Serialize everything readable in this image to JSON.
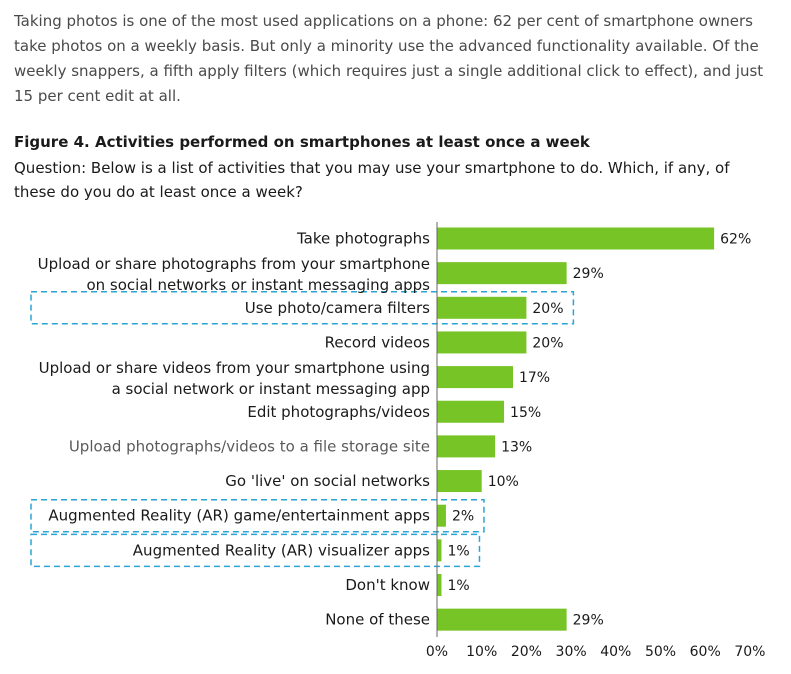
{
  "intro": "Taking photos is one of the most used applications on a phone: 62 per cent of smartphone owners take photos on a weekly basis. But only a minority use the advanced functionality available. Of the weekly snappers, a fifth apply filters (which requires just a single additional click to effect), and just 15 per cent edit at all.",
  "figure": {
    "title": "Figure 4. Activities performed on smartphones at least once a week",
    "question": "Question: Below is a list of activities that you may use your smartphone to do. Which, if any, of these do you do at least once a week?"
  },
  "colors": {
    "bar": "#76c425",
    "highlight_border": "#2aa5d6",
    "axis": "#666666"
  },
  "chart_data": {
    "type": "bar",
    "orientation": "horizontal",
    "categories": [
      [
        "Take photographs"
      ],
      [
        "Upload or share photographs from your smartphone",
        "on social networks or instant messaging apps"
      ],
      [
        "Use photo/camera filters"
      ],
      [
        "Record videos"
      ],
      [
        "Upload or share videos from your smartphone using",
        "a social network or instant messaging app"
      ],
      [
        "Edit photographs/videos"
      ],
      [
        "Upload photographs/videos to a file storage site"
      ],
      [
        "Go 'live' on social networks"
      ],
      [
        "Augmented Reality (AR) game/entertainment apps"
      ],
      [
        "Augmented Reality (AR) visualizer apps"
      ],
      [
        "Don't know"
      ],
      [
        "None of these"
      ]
    ],
    "values": [
      62,
      29,
      20,
      20,
      17,
      15,
      13,
      10,
      2,
      1,
      1,
      29
    ],
    "value_labels": [
      "62%",
      "29%",
      "20%",
      "20%",
      "17%",
      "15%",
      "13%",
      "10%",
      "2%",
      "1%",
      "1%",
      "29%"
    ],
    "highlighted": [
      false,
      false,
      true,
      false,
      false,
      false,
      false,
      false,
      true,
      true,
      false,
      false
    ],
    "grey_label": [
      false,
      false,
      false,
      false,
      false,
      false,
      true,
      false,
      false,
      false,
      false,
      false
    ],
    "xlim": [
      0,
      70
    ],
    "xticks": [
      "0%",
      "10%",
      "20%",
      "30%",
      "40%",
      "50%",
      "60%",
      "70%"
    ],
    "grid": false,
    "legend": "none"
  }
}
